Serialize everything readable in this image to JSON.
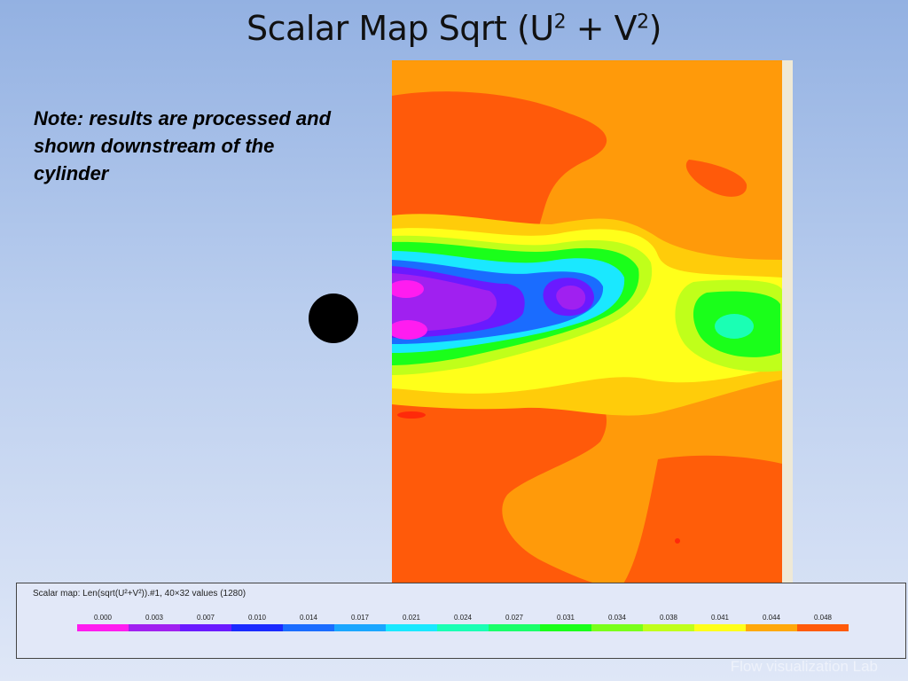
{
  "slide": {
    "title_main": "Scalar Map Sqrt (U",
    "title_sup1": "2",
    "title_plus": " + V",
    "title_sup2": "2",
    "title_close": ")",
    "note": "Note: results are processed and shown downstream of the cylinder",
    "footer": "Flow visualization Lab"
  },
  "legend": {
    "title": "Scalar map: Len(sqrt(U²+V²)).#1, 40×32 values (1280)",
    "labels": [
      "0.000",
      "0.003",
      "0.007",
      "0.010",
      "0.014",
      "0.017",
      "0.021",
      "0.024",
      "0.027",
      "0.031",
      "0.034",
      "0.038",
      "0.041",
      "0.044",
      "0.048"
    ],
    "colors": [
      "#ff1cf0",
      "#a020f0",
      "#6a1aff",
      "#1a2aff",
      "#1a6cff",
      "#1aa6ff",
      "#1ae8ff",
      "#1affb4",
      "#1aff6a",
      "#1aff1a",
      "#7aff1a",
      "#c0ff1a",
      "#ffff1a",
      "#ffa80a",
      "#ff5a0a"
    ]
  },
  "map_colors": {
    "background": "#ff9a0a",
    "warm": "#ff5a0a",
    "yellow_orange": "#ffcc0a",
    "yellow": "#ffff1a",
    "green": "#1aff1a",
    "cyan": "#1ae8ff",
    "blue": "#1a6cff",
    "violet": "#6a1aff",
    "purple": "#a020f0",
    "magenta": "#ff1cf0"
  }
}
